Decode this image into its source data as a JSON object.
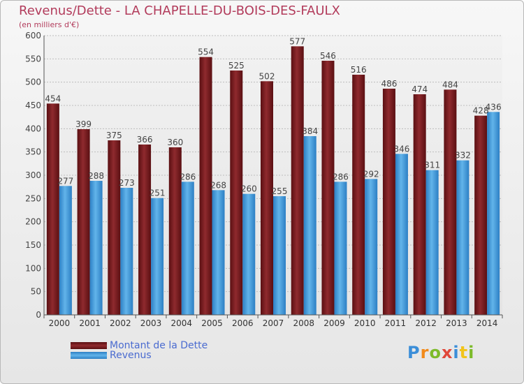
{
  "title": "Revenus/Dette - LA CHAPELLE-DU-BOIS-DES-FAULX",
  "subtitle": "(en milliers d'€)",
  "legend": {
    "debt_label": "Montant de la Dette",
    "revenue_label": "Revenus"
  },
  "logo": {
    "text": "Proxiti"
  },
  "colors": {
    "debt": "#7a1e22",
    "revenue": "#4aa3e0",
    "title": "#b23b5b",
    "legend_text": "#4a6bd0"
  },
  "chart_data": {
    "type": "bar",
    "categories": [
      "2000",
      "2001",
      "2002",
      "2003",
      "2004",
      "2005",
      "2006",
      "2007",
      "2008",
      "2009",
      "2010",
      "2011",
      "2012",
      "2013",
      "2014"
    ],
    "series": [
      {
        "name": "Montant de la Dette",
        "values": [
          454,
          399,
          375,
          366,
          360,
          554,
          525,
          502,
          577,
          546,
          516,
          486,
          474,
          484,
          428
        ]
      },
      {
        "name": "Revenus",
        "values": [
          277,
          288,
          273,
          251,
          286,
          268,
          260,
          255,
          384,
          286,
          292,
          346,
          311,
          332,
          436
        ]
      }
    ],
    "ylim": [
      0,
      600
    ],
    "yticks": [
      0,
      50,
      100,
      150,
      200,
      250,
      300,
      350,
      400,
      450,
      500,
      550,
      600
    ],
    "grid": true,
    "legend_position": "bottom-left"
  }
}
